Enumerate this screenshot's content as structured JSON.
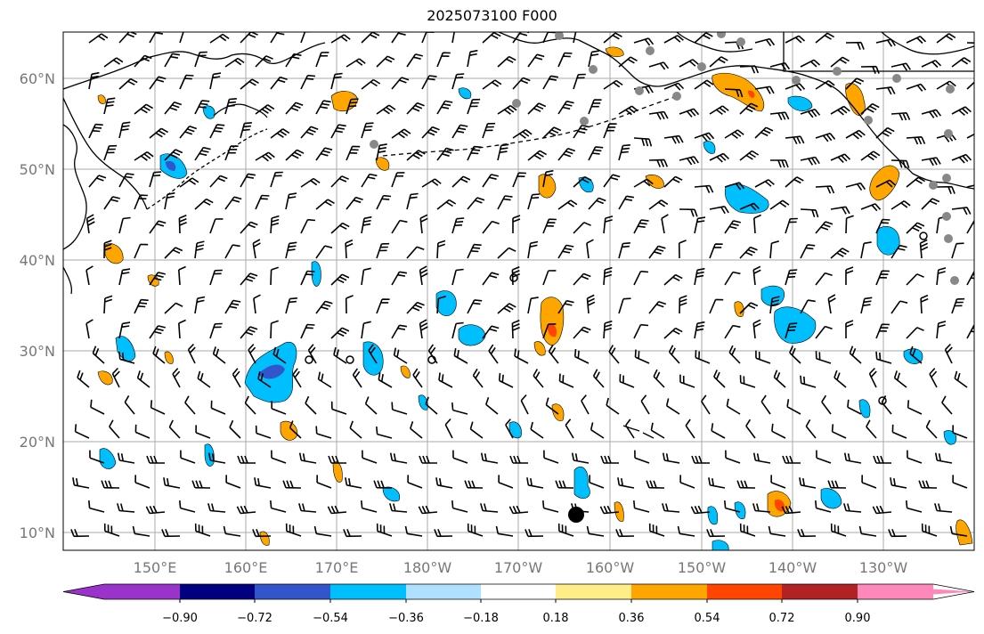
{
  "title": "2025073100 F000",
  "latitude_labels": [
    "60°N",
    "50°N",
    "40°N",
    "30°N",
    "20°N",
    "10°N"
  ],
  "longitude_labels": [
    "150°E",
    "160°E",
    "170°E",
    "180°W",
    "170°W",
    "160°W",
    "150°W",
    "140°W",
    "130°W"
  ],
  "colorbar": {
    "tick_labels": [
      "−0.90",
      "−0.72",
      "−0.54",
      "−0.36",
      "−0.18",
      "0.18",
      "0.36",
      "0.54",
      "0.72",
      "0.90"
    ],
    "colors": [
      "#9933cc",
      "#000080",
      "#3355cc",
      "#00bfff",
      "#b0e0ff",
      "#ffffff",
      "#ffee88",
      "#ffa500",
      "#ff4500",
      "#b22222",
      "#ff88bb"
    ]
  },
  "colors": {
    "gridline": "#aaaaaa",
    "coastline": "#000000",
    "wind_barb": "#000000",
    "station_marker": "#888888"
  }
}
